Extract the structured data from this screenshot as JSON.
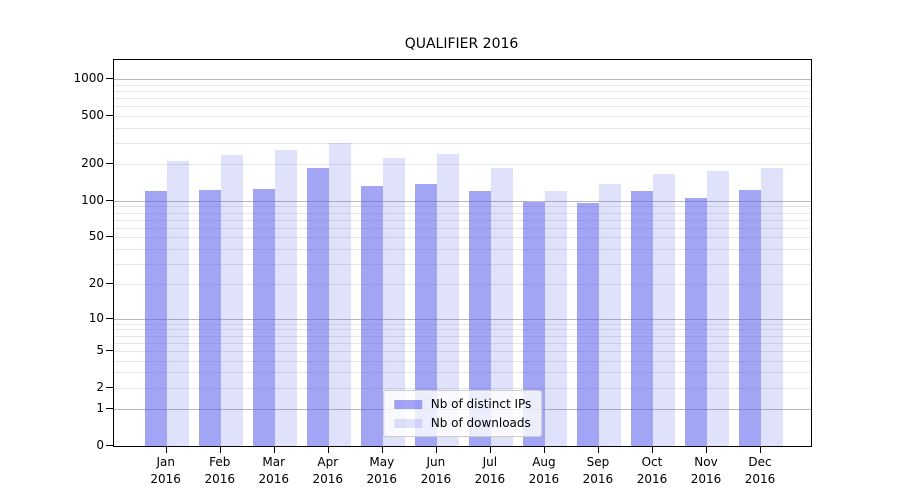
{
  "chart_data": {
    "type": "bar",
    "title": "QUALIFIER 2016",
    "categories": [
      "Jan",
      "Feb",
      "Mar",
      "Apr",
      "May",
      "Jun",
      "Jul",
      "Aug",
      "Sep",
      "Oct",
      "Nov",
      "Dec"
    ],
    "year_label": "2016",
    "series": [
      {
        "name": "Nb of distinct IPs",
        "color": "rgba(85,90,235,0.55)",
        "values": [
          120,
          124,
          125,
          188,
          133,
          139,
          120,
          97,
          96,
          120,
          106,
          123
        ]
      },
      {
        "name": "Nb of downloads",
        "color": "rgba(85,90,235,0.18)",
        "values": [
          215,
          240,
          262,
          298,
          225,
          245,
          186,
          121,
          138,
          168,
          175,
          185
        ]
      }
    ],
    "y_axis": {
      "scale": "log1p",
      "tick_values": [
        0,
        1,
        2,
        5,
        10,
        20,
        50,
        100,
        200,
        500,
        1000
      ],
      "tick_labels": [
        "0",
        "1",
        "2",
        "5",
        "10",
        "20",
        "50",
        "100",
        "200",
        "500",
        "1000"
      ],
      "max": 1430
    },
    "grid": "major-and-minor",
    "legend_position": "lower-center",
    "major_grid_color": "#b8b8b8",
    "minor_grid_color": "#e6e6e6"
  }
}
